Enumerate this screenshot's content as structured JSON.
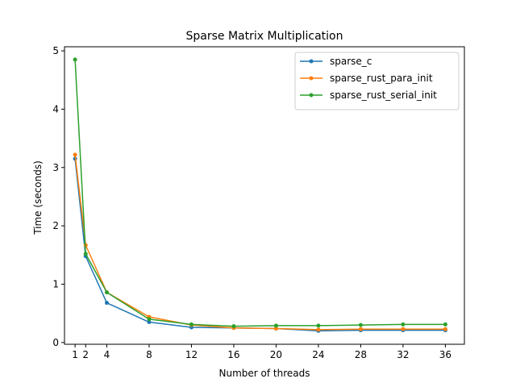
{
  "chart_data": {
    "type": "line",
    "title": "Sparse Matrix Multiplication",
    "xlabel": "Number of threads",
    "ylabel": "Time (seconds)",
    "x": [
      1,
      2,
      4,
      8,
      12,
      16,
      20,
      24,
      28,
      32,
      36
    ],
    "xticks": [
      1,
      2,
      4,
      8,
      12,
      16,
      20,
      24,
      28,
      32,
      36
    ],
    "yticks": [
      0,
      1,
      2,
      3,
      4,
      5
    ],
    "xlim": [
      0.0,
      37.8
    ],
    "ylim": [
      -0.03,
      5.07
    ],
    "grid": false,
    "legend_position": "top-right",
    "series": [
      {
        "name": "sparse_c",
        "color": "#1f77b4",
        "values": [
          3.15,
          1.48,
          0.68,
          0.35,
          0.26,
          0.25,
          0.24,
          0.2,
          0.21,
          0.21,
          0.21
        ]
      },
      {
        "name": "sparse_rust_para_init",
        "color": "#ff7f0e",
        "values": [
          3.22,
          1.67,
          0.86,
          0.44,
          0.3,
          0.25,
          0.24,
          0.22,
          0.23,
          0.23,
          0.23
        ]
      },
      {
        "name": "sparse_rust_serial_init",
        "color": "#2ca02c",
        "values": [
          4.85,
          1.52,
          0.86,
          0.4,
          0.31,
          0.28,
          0.29,
          0.29,
          0.3,
          0.31,
          0.31
        ]
      }
    ]
  }
}
